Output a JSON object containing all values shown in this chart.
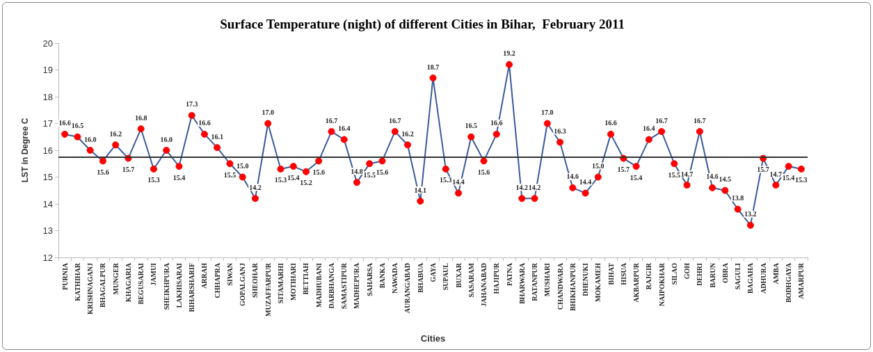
{
  "chart_data": {
    "type": "line",
    "title": "Surface Temperature (night) of different Cities in Bihar,  February 2011",
    "xlabel": "Cities",
    "ylabel": "LST in Degree C",
    "categories": [
      "PURNIA",
      "KATHIHAR",
      "KRISHNAGANJ",
      "BHAGALPUR",
      "MUNGER",
      "KHAGARIA",
      "BEGUSARAI",
      "JAMUI",
      "SHEIKHPURA",
      "LAKHISARAI",
      "BIHARSHARIF",
      "ARRAH",
      "CHHAPRA",
      "SIWAN",
      "GOPALGANJ",
      "SHEOHAR",
      "MUZAFFARPUR",
      "SITAMARHI",
      "MOTIHARI",
      "BETTIAH",
      "MADHUBANI",
      "DARBHANGA",
      "SAMASTIPUR",
      "MADHEPURA",
      "SAHARSA",
      "BANKA",
      "NAWADA",
      "AURANGABAD",
      "BHABUA",
      "GAYA",
      "SUPAUL",
      "BUXAR",
      "SASARAM",
      "JAHANABAD",
      "HAJIPUR",
      "PATNA",
      "BHARWARA",
      "RATANPUR",
      "MUSHARI",
      "CHANDWARA",
      "BHIKHANPUR",
      "DHENUKI",
      "MOKAMEH",
      "BIHAT",
      "HISUA",
      "AKBARPUR",
      "RAJGIR",
      "NAIPOKHAR",
      "SILAO",
      "GOH",
      "DEHRI",
      "BARUN",
      "OBRA",
      "SAGULI",
      "BAGAHA",
      "ADHURA",
      "AMBA",
      "BODHGAYA",
      "AMARPUR"
    ],
    "series": [
      {
        "color": "#3b5a9a",
        "values": [
          16.6,
          16.5,
          16.0,
          15.6,
          16.2,
          15.7,
          16.8,
          15.3,
          16.0,
          15.4,
          17.3,
          16.6,
          16.1,
          15.5,
          15.0,
          14.2,
          17.0,
          15.3,
          15.4,
          15.2,
          15.6,
          16.7,
          16.4,
          14.8,
          15.5,
          15.6,
          16.7,
          16.2,
          14.1,
          18.7,
          15.3,
          14.4,
          16.5,
          15.6,
          16.6,
          19.2,
          14.2,
          14.2,
          17.0,
          16.3,
          14.6,
          14.4,
          15.0,
          16.6,
          15.7,
          15.4,
          16.4,
          16.7,
          15.5,
          14.7,
          16.7,
          14.6,
          14.5,
          13.8,
          13.2,
          15.7,
          14.7,
          15.4,
          15.3
        ],
        "value_labels": [
          "16.6",
          "16.5",
          "16.0",
          "15.6",
          "16.2",
          "15.7",
          "16.8",
          "15.3",
          "16.0",
          "15.4",
          "17.3",
          "16.6",
          "16.1",
          "15.5",
          "15.0",
          "14.2",
          "17.0",
          "15.3",
          "15.4",
          "15.2",
          "15.6",
          "16.7",
          "16.4",
          "14.8",
          "15.5",
          "15.6",
          "16.7",
          "16.2",
          "14.1",
          "18.7",
          "15.3",
          "14.4",
          "16.5",
          "15.6",
          "16.6",
          "19.2",
          "14.2",
          "14.2",
          "17.0",
          "16.3",
          "14.6",
          "14.4",
          "15.0",
          "16.6",
          "15.7",
          "15.4",
          "16.4",
          "16.7",
          "15.5",
          "14.7",
          "16.7",
          "14.6",
          "14.5",
          "13.8",
          "13.2",
          "15.7",
          "14.7",
          "15.4",
          "15.3"
        ]
      }
    ],
    "ylim": [
      12,
      20
    ],
    "yticks": [
      12,
      13,
      14,
      15,
      16,
      17,
      18,
      19,
      20
    ],
    "grid": false,
    "marker": "circle",
    "line_style": "solid",
    "ref_lines": [
      {
        "axis": "y",
        "value": 15.75,
        "color": "#333333",
        "line_style": "solid"
      }
    ]
  }
}
